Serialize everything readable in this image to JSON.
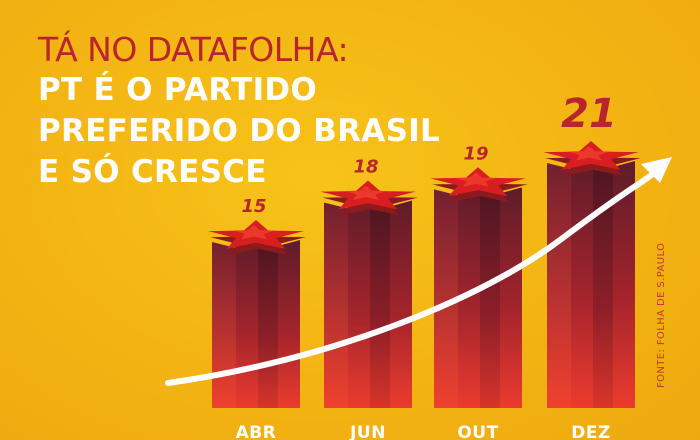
{
  "header": {
    "kicker": "TÁ NO DATAFOLHA:",
    "lines": [
      "PT É O PARTIDO",
      "PREFERIDO DO BRASIL",
      "E SÓ CRESCE"
    ]
  },
  "source": "FONTE: FOLHA DE S.PAULO",
  "colors": {
    "background": "#f3b413",
    "accent_red": "#b8262b",
    "star_red": "#d81e1e",
    "bar_dark": "#5e1c2a",
    "bar_light": "#e83a2e",
    "arrow": "#ffffff"
  },
  "chart_data": {
    "type": "bar",
    "title": "",
    "xlabel": "",
    "ylabel": "",
    "categories": [
      "ABR",
      "JUN",
      "OUT",
      "DEZ"
    ],
    "values": [
      15,
      18,
      19,
      21
    ],
    "data_labels": [
      "15",
      "18",
      "19",
      "21"
    ],
    "grid": false,
    "legend": "none",
    "trend_arrow": "increasing"
  }
}
